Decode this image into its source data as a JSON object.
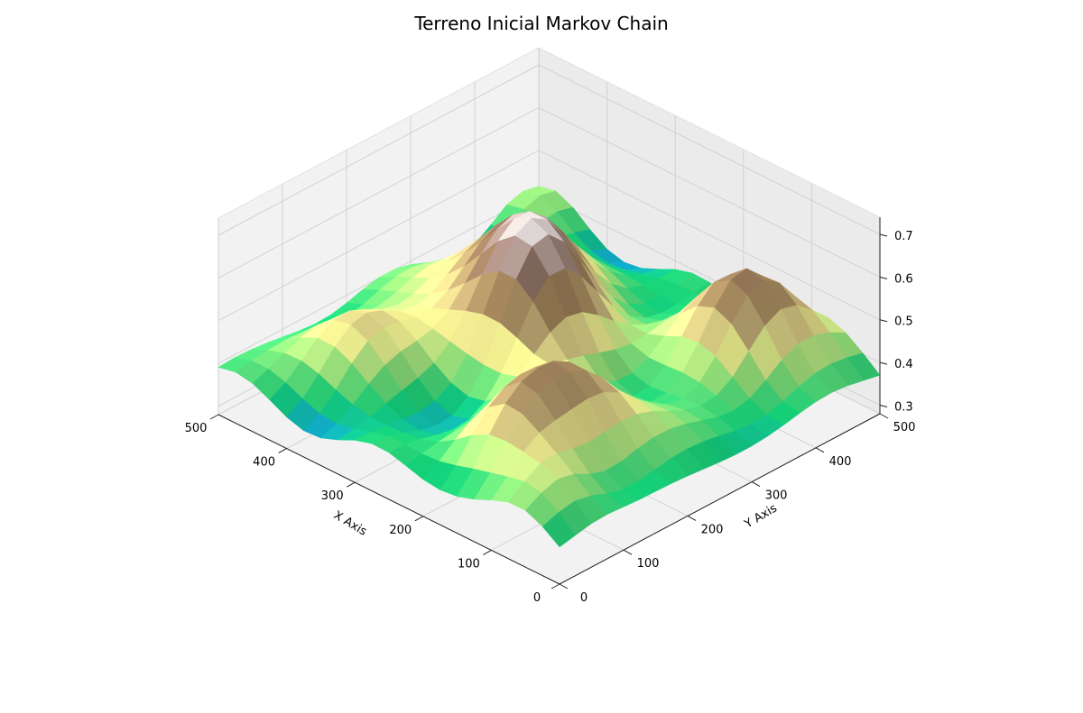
{
  "chart_data": {
    "type": "surface3d",
    "title": "Terreno Inicial Markov Chain",
    "xlabel": "X Axis",
    "ylabel": "Y Axis",
    "zlabel": "",
    "xlim": [
      0,
      500
    ],
    "ylim": [
      0,
      500
    ],
    "zlim": [
      0.28,
      0.74
    ],
    "x_ticks": [
      0,
      100,
      200,
      300,
      400,
      500
    ],
    "y_ticks": [
      0,
      100,
      200,
      300,
      400,
      500
    ],
    "z_ticks": [
      0.3,
      0.4,
      0.5,
      0.6,
      0.7
    ],
    "x_tick_labels": [
      "0",
      "100",
      "200",
      "300",
      "400",
      "500"
    ],
    "y_tick_labels": [
      "0",
      "100",
      "200",
      "300",
      "400",
      "500"
    ],
    "z_tick_labels": [
      "0.3",
      "0.4",
      "0.5",
      "0.6",
      "0.7"
    ],
    "grid": true,
    "colormap": "terrain",
    "colormap_stops": [
      "#0e9ae8",
      "#14d47a",
      "#98ee80",
      "#ffff99",
      "#cdb67e",
      "#a88a5e",
      "#8b6a5a",
      "#c8b4ae",
      "#ffffff"
    ],
    "grid_steps": 20,
    "terrain_peaks": [
      {
        "x": 340,
        "y": 300,
        "height": 0.26,
        "spread": 70
      },
      {
        "x": 110,
        "y": 420,
        "height": 0.22,
        "spread": 55
      },
      {
        "x": 130,
        "y": 165,
        "height": 0.17,
        "spread": 60
      },
      {
        "x": 270,
        "y": 250,
        "height": 0.13,
        "spread": 50
      },
      {
        "x": 150,
        "y": 70,
        "height": 0.1,
        "spread": 45
      },
      {
        "x": 420,
        "y": 110,
        "height": 0.12,
        "spread": 55
      },
      {
        "x": 60,
        "y": 60,
        "height": 0.06,
        "spread": 40
      },
      {
        "x": 480,
        "y": 460,
        "height": 0.06,
        "spread": 40
      }
    ],
    "terrain_base": 0.36,
    "terrain_ripple": 0.03
  }
}
